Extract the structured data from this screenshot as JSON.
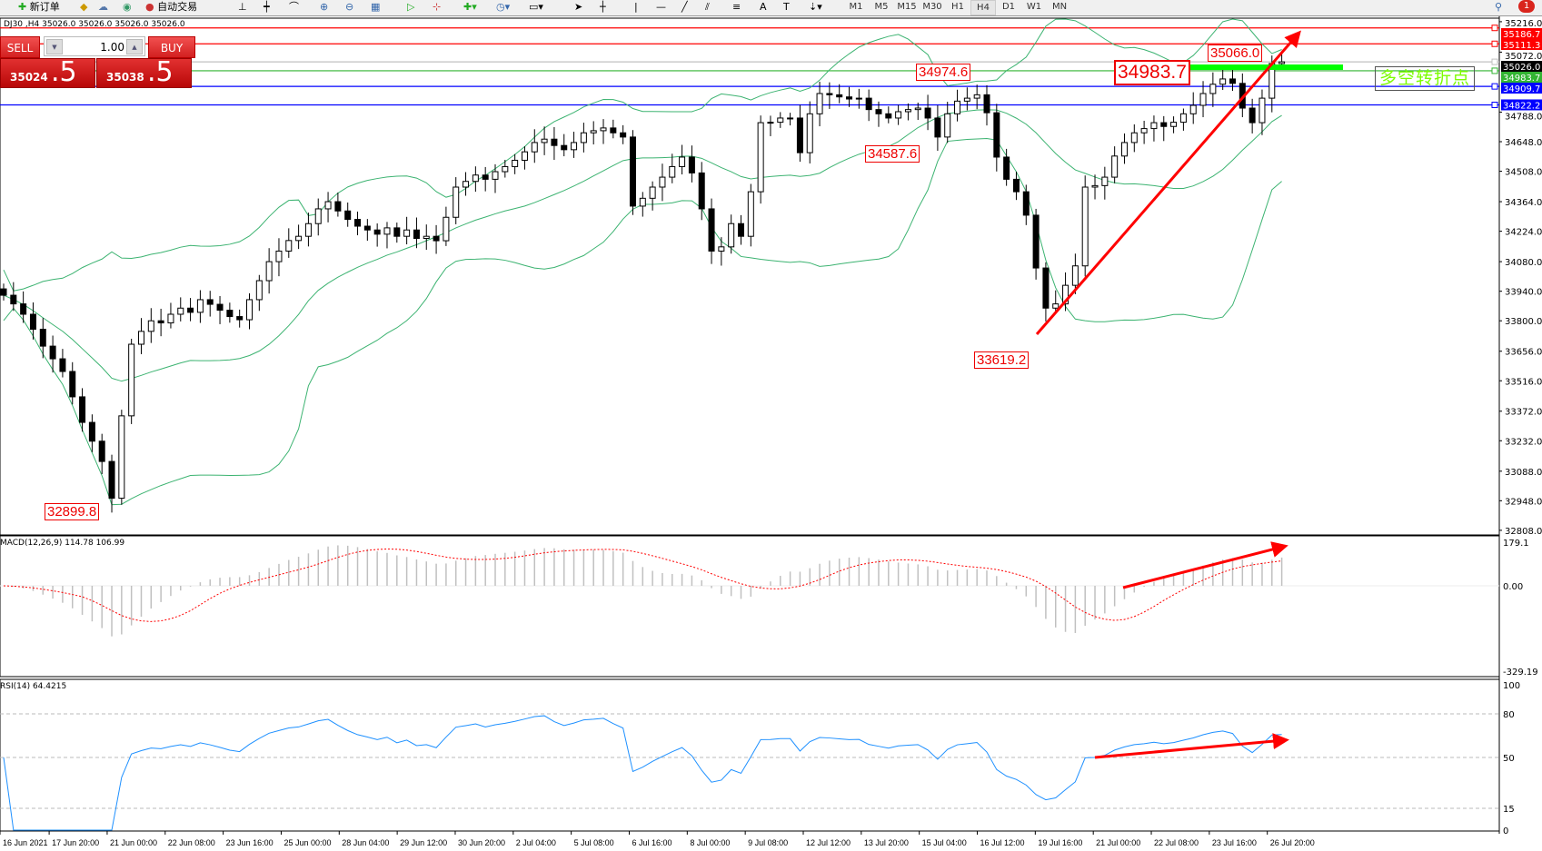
{
  "toolbar": {
    "new_order": "新订单",
    "auto_trading": "自动交易",
    "timeframes": [
      "M1",
      "M5",
      "M15",
      "M30",
      "H1",
      "H4",
      "D1",
      "W1",
      "MN"
    ],
    "active_timeframe": "H4",
    "notification_count": "1"
  },
  "chart": {
    "title": "DJ30 ,H4  35026.0 35026.0 35026.0 35026.0",
    "macd_label": "MACD(12,26,9) 114.78 106.99",
    "rsi_label": "RSI(14) 64.4215",
    "turn_point_text": "多空转折点"
  },
  "trade_panel": {
    "sell_label": "SELL",
    "buy_label": "BUY",
    "lot": "1.00",
    "sell_price_main": "35024",
    "sell_price_frac": ".5",
    "buy_price_main": "35038",
    "buy_price_frac": ".5"
  },
  "chart_data": {
    "type": "candlestick",
    "symbol": "DJ30",
    "timeframe": "H4",
    "closes": [
      33921,
      33880,
      33831,
      33760,
      33680,
      33620,
      33560,
      33440,
      33319,
      33230,
      33134,
      32960,
      33350,
      33689,
      33750,
      33800,
      33790,
      33831,
      33860,
      33840,
      33900,
      33878,
      33850,
      33820,
      33805,
      33900,
      33990,
      34080,
      34130,
      34180,
      34200,
      34260,
      34330,
      34364,
      34320,
      34280,
      34248,
      34230,
      34210,
      34240,
      34200,
      34230,
      34190,
      34200,
      34179,
      34290,
      34433,
      34460,
      34490,
      34470,
      34506,
      34530,
      34560,
      34600,
      34644,
      34660,
      34630,
      34610,
      34644,
      34690,
      34700,
      34713,
      34690,
      34670,
      34343,
      34380,
      34433,
      34480,
      34530,
      34575,
      34500,
      34330,
      34130,
      34150,
      34260,
      34200,
      34411,
      34738,
      34740,
      34760,
      34760,
      34596,
      34780,
      34876,
      34870,
      34860,
      34850,
      34854,
      34800,
      34780,
      34760,
      34790,
      34800,
      34807,
      34760,
      34670,
      34780,
      34840,
      34854,
      34870,
      34785,
      34575,
      34470,
      34411,
      34300,
      34050,
      33860,
      33880,
      33968,
      34060,
      34433,
      34440,
      34480,
      34580,
      34644,
      34690,
      34710,
      34738,
      34720,
      34740,
      34780,
      34820,
      34876,
      34920,
      34945,
      34924,
      34807,
      34738,
      34854,
      35018,
      35026
    ],
    "price_axis_ticks": [
      "35216.0",
      "35072.0",
      "34788.0",
      "34648.0",
      "34508.0",
      "34364.0",
      "34224.0",
      "34080.0",
      "33940.0",
      "33800.0",
      "33656.0",
      "33516.0",
      "33372.0",
      "33232.0",
      "33088.0",
      "32948.0",
      "32808.0"
    ],
    "price_range": [
      32808,
      35216
    ],
    "horizontal_lines": [
      {
        "price": "35186.7",
        "color": "#ff0000",
        "label_bg": "#ff0000"
      },
      {
        "price": "35111.3",
        "color": "#ff0000",
        "label_bg": "#ff0000"
      },
      {
        "price": "35026.0",
        "color": "#c0c0c0",
        "label_bg": "#000000"
      },
      {
        "price": "34983.7",
        "color": "#32b432",
        "label_bg": "#32b432"
      },
      {
        "price": "34909.7",
        "color": "#0000ff",
        "label_bg": "#0000ff"
      },
      {
        "price": "34822.2",
        "color": "#0000ff",
        "label_bg": "#0000ff"
      }
    ],
    "price_annotations": [
      "34974.6",
      "34587.6",
      "33619.2",
      "32899.8",
      "34983.7",
      "35066.0"
    ],
    "macd_axis": [
      "179.1",
      "0.00",
      "-329.19"
    ],
    "macd_range": [
      -329.19,
      179.1
    ],
    "rsi_axis": [
      "100",
      "80",
      "50",
      "15",
      "0"
    ],
    "rsi_levels": [
      80,
      50,
      15
    ],
    "time_labels": [
      "16 Jun 2021",
      "17 Jun 20:00",
      "21 Jun 00:00",
      "22 Jun 08:00",
      "23 Jun 16:00",
      "25 Jun 00:00",
      "28 Jun 04:00",
      "29 Jun 12:00",
      "30 Jun 20:00",
      "2 Jul 04:00",
      "5 Jul 08:00",
      "6 Jul 16:00",
      "8 Jul 00:00",
      "9 Jul 08:00",
      "12 Jul 12:00",
      "13 Jul 20:00",
      "15 Jul 04:00",
      "16 Jul 12:00",
      "19 Jul 16:00",
      "21 Jul 00:00",
      "22 Jul 08:00",
      "23 Jul 16:00",
      "26 Jul 20:00"
    ],
    "colors": {
      "bands": "#3cb371",
      "macd_hist": "#c0c0c0",
      "macd_signal": "#ff0000",
      "rsi": "#1e90ff",
      "arrow": "#ff0000",
      "turn_bar": "#00ff00"
    }
  }
}
